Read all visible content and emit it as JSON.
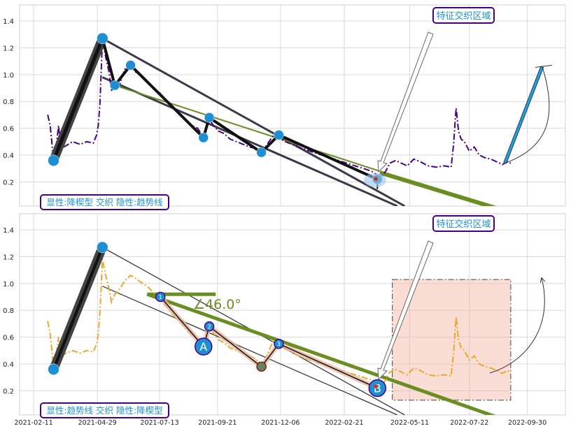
{
  "chart_data": [
    {
      "type": "line",
      "panel": "top",
      "x_range": [
        "2021-01-25",
        "2022-11-15"
      ],
      "ylim": [
        0.02,
        1.52
      ],
      "yticks": [
        0.2,
        0.4,
        0.6,
        0.8,
        1.0,
        1.2,
        1.4
      ],
      "ytick_labels": [
        "0.2",
        "0.4",
        "0.6",
        "0.8",
        "1.0",
        "1.2",
        "1.4"
      ],
      "grid": true,
      "series": [
        {
          "style": "dashdot",
          "color": "#4b0082",
          "points": [
            [
              "2021-02-28",
              0.7
            ],
            [
              "2021-03-03",
              0.62
            ],
            [
              "2021-03-07",
              0.36
            ],
            [
              "2021-03-10",
              0.45
            ],
            [
              "2021-03-13",
              0.62
            ],
            [
              "2021-03-16",
              0.45
            ],
            [
              "2021-03-22",
              0.47
            ],
            [
              "2021-03-30",
              0.5
            ],
            [
              "2021-04-08",
              0.48
            ],
            [
              "2021-04-16",
              0.5
            ],
            [
              "2021-04-24",
              0.49
            ],
            [
              "2021-04-28",
              0.55
            ],
            [
              "2021-04-30",
              0.62
            ],
            [
              "2021-05-02",
              0.78
            ],
            [
              "2021-05-05",
              1.27
            ],
            [
              "2021-05-09",
              1.13
            ],
            [
              "2021-05-13",
              1.02
            ],
            [
              "2021-05-16",
              0.88
            ],
            [
              "2021-05-20",
              0.95
            ],
            [
              "2021-05-26",
              0.93
            ],
            [
              "2021-06-01",
              1.04
            ],
            [
              "2021-06-08",
              1.07
            ],
            [
              "2021-06-14",
              1.02
            ],
            [
              "2021-06-20",
              1.0
            ],
            [
              "2021-06-28",
              0.94
            ],
            [
              "2021-07-06",
              0.9
            ],
            [
              "2021-07-14",
              0.86
            ],
            [
              "2021-07-22",
              0.8
            ],
            [
              "2021-07-30",
              0.75
            ],
            [
              "2021-08-07",
              0.7
            ],
            [
              "2021-08-14",
              0.66
            ],
            [
              "2021-08-21",
              0.62
            ],
            [
              "2021-08-28",
              0.6
            ],
            [
              "2021-09-04",
              0.53
            ],
            [
              "2021-09-07",
              0.6
            ],
            [
              "2021-09-11",
              0.67
            ],
            [
              "2021-09-16",
              0.62
            ],
            [
              "2021-09-22",
              0.58
            ],
            [
              "2021-09-29",
              0.56
            ],
            [
              "2021-10-06",
              0.52
            ],
            [
              "2021-10-14",
              0.5
            ],
            [
              "2021-10-22",
              0.48
            ],
            [
              "2021-10-30",
              0.46
            ],
            [
              "2021-11-06",
              0.45
            ],
            [
              "2021-11-13",
              0.42
            ],
            [
              "2021-11-17",
              0.45
            ],
            [
              "2021-11-22",
              0.5
            ],
            [
              "2021-11-28",
              0.55
            ],
            [
              "2021-12-04",
              0.53
            ],
            [
              "2021-12-12",
              0.5
            ],
            [
              "2021-12-20",
              0.48
            ],
            [
              "2021-12-28",
              0.46
            ],
            [
              "2022-01-06",
              0.44
            ],
            [
              "2022-01-15",
              0.42
            ],
            [
              "2022-01-25",
              0.4
            ],
            [
              "2022-02-04",
              0.38
            ],
            [
              "2022-02-14",
              0.36
            ],
            [
              "2022-02-24",
              0.34
            ],
            [
              "2022-03-06",
              0.32
            ],
            [
              "2022-03-16",
              0.3
            ],
            [
              "2022-03-26",
              0.28
            ],
            [
              "2022-04-02",
              0.25
            ],
            [
              "2022-04-07",
              0.24
            ],
            [
              "2022-04-12",
              0.28
            ],
            [
              "2022-04-17",
              0.34
            ],
            [
              "2022-04-24",
              0.36
            ],
            [
              "2022-05-01",
              0.34
            ],
            [
              "2022-05-08",
              0.32
            ],
            [
              "2022-05-16",
              0.37
            ],
            [
              "2022-05-24",
              0.35
            ],
            [
              "2022-06-02",
              0.32
            ],
            [
              "2022-06-12",
              0.31
            ],
            [
              "2022-06-22",
              0.32
            ],
            [
              "2022-06-30",
              0.31
            ],
            [
              "2022-07-03",
              0.48
            ],
            [
              "2022-07-06",
              0.75
            ],
            [
              "2022-07-09",
              0.58
            ],
            [
              "2022-07-12",
              0.52
            ],
            [
              "2022-07-16",
              0.5
            ],
            [
              "2022-07-22",
              0.43
            ],
            [
              "2022-07-28",
              0.46
            ],
            [
              "2022-08-03",
              0.4
            ],
            [
              "2022-08-10",
              0.38
            ],
            [
              "2022-08-17",
              0.37
            ],
            [
              "2022-08-24",
              0.35
            ],
            [
              "2022-08-31",
              0.33
            ],
            [
              "2022-09-06",
              0.35
            ],
            [
              "2022-09-10",
              0.34
            ]
          ]
        }
      ],
      "annotations": [
        "特征交织区域",
        "显性:降楔型 交织 隐性:趋势线"
      ]
    },
    {
      "type": "line",
      "panel": "bottom",
      "x_range": [
        "2021-01-25",
        "2022-11-15"
      ],
      "ylim": [
        0.02,
        1.52
      ],
      "yticks": [
        0.2,
        0.4,
        0.6,
        0.8,
        1.0,
        1.2,
        1.4
      ],
      "ytick_labels": [
        "0.2",
        "0.4",
        "0.6",
        "0.8",
        "1.0",
        "1.2",
        "1.4"
      ],
      "xtick_labels": [
        "2021-02-11",
        "2021-04-29",
        "2021-07-13",
        "2021-09-21",
        "2021-12-06",
        "2022-02-21",
        "2022-05-11",
        "2022-07-22",
        "2022-09-30"
      ],
      "xticks": [
        "2021-02-11",
        "2021-04-29",
        "2021-07-13",
        "2021-09-21",
        "2021-12-06",
        "2022-02-21",
        "2022-05-11",
        "2022-07-22",
        "2022-09-30"
      ],
      "grid": true,
      "series": [
        {
          "style": "dashdot",
          "color": "#e8a92a",
          "points": [
            [
              "2021-02-28",
              0.72
            ],
            [
              "2021-03-03",
              0.62
            ],
            [
              "2021-03-07",
              0.38
            ],
            [
              "2021-03-10",
              0.45
            ],
            [
              "2021-03-13",
              0.6
            ],
            [
              "2021-03-16",
              0.46
            ],
            [
              "2021-03-22",
              0.48
            ],
            [
              "2021-03-30",
              0.5
            ],
            [
              "2021-04-08",
              0.48
            ],
            [
              "2021-04-16",
              0.5
            ],
            [
              "2021-04-24",
              0.49
            ],
            [
              "2021-04-28",
              0.55
            ],
            [
              "2021-04-30",
              0.62
            ],
            [
              "2021-05-02",
              0.78
            ],
            [
              "2021-05-05",
              1.18
            ],
            [
              "2021-05-09",
              1.06
            ],
            [
              "2021-05-13",
              0.96
            ],
            [
              "2021-05-16",
              0.86
            ],
            [
              "2021-05-20",
              0.92
            ],
            [
              "2021-05-26",
              0.96
            ],
            [
              "2021-06-01",
              1.02
            ],
            [
              "2021-06-08",
              1.06
            ],
            [
              "2021-06-14",
              1.04
            ],
            [
              "2021-06-20",
              1.01
            ],
            [
              "2021-06-28",
              0.98
            ],
            [
              "2021-07-06",
              0.93
            ],
            [
              "2021-07-14",
              0.88
            ],
            [
              "2021-07-22",
              0.82
            ],
            [
              "2021-07-30",
              0.76
            ],
            [
              "2021-08-07",
              0.71
            ],
            [
              "2021-08-14",
              0.66
            ],
            [
              "2021-08-21",
              0.61
            ],
            [
              "2021-08-28",
              0.58
            ],
            [
              "2021-09-04",
              0.53
            ],
            [
              "2021-09-07",
              0.59
            ],
            [
              "2021-09-11",
              0.68
            ],
            [
              "2021-09-16",
              0.63
            ],
            [
              "2021-09-22",
              0.58
            ],
            [
              "2021-09-29",
              0.56
            ],
            [
              "2021-10-06",
              0.52
            ],
            [
              "2021-10-14",
              0.5
            ],
            [
              "2021-10-22",
              0.48
            ],
            [
              "2021-10-30",
              0.46
            ],
            [
              "2021-11-06",
              0.44
            ],
            [
              "2021-11-13",
              0.38
            ],
            [
              "2021-11-17",
              0.42
            ],
            [
              "2021-11-22",
              0.5
            ],
            [
              "2021-11-28",
              0.58
            ],
            [
              "2021-12-04",
              0.55
            ],
            [
              "2021-12-12",
              0.51
            ],
            [
              "2021-12-20",
              0.49
            ],
            [
              "2021-12-28",
              0.46
            ],
            [
              "2022-01-06",
              0.44
            ],
            [
              "2022-01-15",
              0.42
            ],
            [
              "2022-01-25",
              0.4
            ],
            [
              "2022-02-04",
              0.38
            ],
            [
              "2022-02-14",
              0.36
            ],
            [
              "2022-02-24",
              0.34
            ],
            [
              "2022-03-06",
              0.32
            ],
            [
              "2022-03-16",
              0.3
            ],
            [
              "2022-03-26",
              0.28
            ],
            [
              "2022-04-02",
              0.25
            ],
            [
              "2022-04-07",
              0.24
            ],
            [
              "2022-04-12",
              0.28
            ],
            [
              "2022-04-17",
              0.34
            ],
            [
              "2022-04-24",
              0.36
            ],
            [
              "2022-05-01",
              0.34
            ],
            [
              "2022-05-08",
              0.32
            ],
            [
              "2022-05-16",
              0.37
            ],
            [
              "2022-05-24",
              0.35
            ],
            [
              "2022-06-02",
              0.32
            ],
            [
              "2022-06-12",
              0.31
            ],
            [
              "2022-06-22",
              0.32
            ],
            [
              "2022-06-30",
              0.31
            ],
            [
              "2022-07-03",
              0.48
            ],
            [
              "2022-07-06",
              0.75
            ],
            [
              "2022-07-09",
              0.58
            ],
            [
              "2022-07-12",
              0.52
            ],
            [
              "2022-07-16",
              0.5
            ],
            [
              "2022-07-22",
              0.43
            ],
            [
              "2022-07-28",
              0.46
            ],
            [
              "2022-08-03",
              0.4
            ],
            [
              "2022-08-10",
              0.38
            ],
            [
              "2022-08-17",
              0.37
            ],
            [
              "2022-08-24",
              0.35
            ],
            [
              "2022-08-31",
              0.33
            ],
            [
              "2022-09-06",
              0.35
            ],
            [
              "2022-09-10",
              0.34
            ]
          ]
        }
      ],
      "annotations": [
        "特征交织区域",
        "显性:趋势线 交织 隐性:降楔型",
        "∠46.0°",
        "A",
        "B",
        "1",
        "2",
        "3"
      ],
      "highlight_region": {
        "x": [
          "2022-04-20",
          "2022-09-10"
        ],
        "y": [
          0.13,
          1.03
        ],
        "color": "#f4b4a0"
      }
    }
  ],
  "top_panel": {
    "callout": "特征交织区域",
    "legend": "显性:降楔型 交织 隐性:趋势线",
    "pivots": [
      [
        "2021-03-07",
        0.36
      ],
      [
        "2021-05-05",
        1.27
      ],
      [
        "2021-05-20",
        0.92
      ],
      [
        "2021-06-08",
        1.07
      ],
      [
        "2021-09-04",
        0.53
      ],
      [
        "2021-09-11",
        0.68
      ],
      [
        "2021-11-13",
        0.42
      ],
      [
        "2021-12-04",
        0.55
      ],
      [
        "2022-04-02",
        0.22
      ]
    ],
    "upper_line": [
      [
        "2021-05-05",
        1.27
      ],
      [
        "2022-05-05",
        0.02
      ]
    ],
    "lower_line": [
      [
        "2021-05-05",
        0.98
      ],
      [
        "2022-04-26",
        0.02
      ]
    ],
    "trend_line": [
      [
        "2021-05-20",
        0.92
      ],
      [
        "2022-04-05",
        0.28
      ]
    ],
    "trend_thick": [
      [
        "2022-04-05",
        0.27
      ],
      [
        "2022-08-26",
        0.0
      ]
    ],
    "forecast": [
      [
        "2022-09-03",
        0.34
      ],
      [
        "2022-10-18",
        1.06
      ]
    ],
    "forecast_color": "#2a9fd6",
    "accent_color": "#6b8e23",
    "pivot_color": "#1f8fd4"
  },
  "bottom_panel": {
    "callout": "特征交织区域",
    "legend": "显性:趋势线 交织 隐性:降楔型",
    "angle_label": "∠46.0°",
    "label_a": "A",
    "label_b": "B",
    "badges": [
      "1",
      "2",
      "3"
    ],
    "impulse": [
      [
        "2021-03-07",
        0.36
      ],
      [
        "2021-05-05",
        1.27
      ]
    ],
    "upper_line": [
      [
        "2021-05-05",
        1.27
      ],
      [
        "2022-05-05",
        0.02
      ]
    ],
    "lower_line": [
      [
        "2021-05-05",
        0.98
      ],
      [
        "2022-04-26",
        0.02
      ]
    ],
    "green_line": [
      [
        "2021-06-28",
        0.92
      ],
      [
        "2022-08-26",
        0.0
      ]
    ],
    "zigzag": [
      [
        "2021-07-14",
        0.9
      ],
      [
        "2021-09-04",
        0.53
      ],
      [
        "2021-09-11",
        0.68
      ],
      [
        "2021-11-13",
        0.38
      ],
      [
        "2021-12-04",
        0.55
      ],
      [
        "2022-04-02",
        0.22
      ]
    ],
    "accent_color": "#6b8e23",
    "pivot_color": "#1f8fd4"
  }
}
